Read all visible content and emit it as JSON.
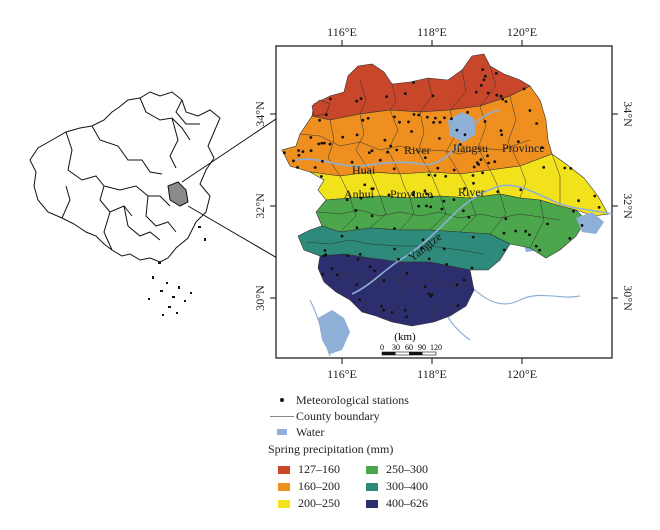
{
  "map": {
    "lon_ticks": [
      "116°E",
      "118°E",
      "120°E"
    ],
    "lat_ticks": [
      "34°N",
      "32°N",
      "30°N"
    ],
    "place_labels": {
      "huai": "Huai",
      "river1": "River",
      "jiangsu": "Jiangsu",
      "province1": "Province",
      "anhui": "Anhui",
      "province2": "Province",
      "river2": "River",
      "yangtze": "Yangtze"
    },
    "scale_unit": "(km)",
    "scale_ticks": [
      "0",
      "30",
      "60",
      "90",
      "120"
    ]
  },
  "legend": {
    "stations": "Meteorological stations",
    "county": "County boundary",
    "water": "Water",
    "precip_title": "Spring precipitation (mm)",
    "classes": [
      {
        "label": "127–160",
        "color": "#c8472b"
      },
      {
        "label": "250–300",
        "color": "#4ca64c"
      },
      {
        "label": "160–200",
        "color": "#ee8f1f"
      },
      {
        "label": "300–400",
        "color": "#2e8a7a"
      },
      {
        "label": "200–250",
        "color": "#f2e21c"
      },
      {
        "label": "400–626",
        "color": "#2d2e6e"
      }
    ]
  },
  "colors": {
    "water": "#8eafd6",
    "boundary": "#7a7a7a"
  }
}
